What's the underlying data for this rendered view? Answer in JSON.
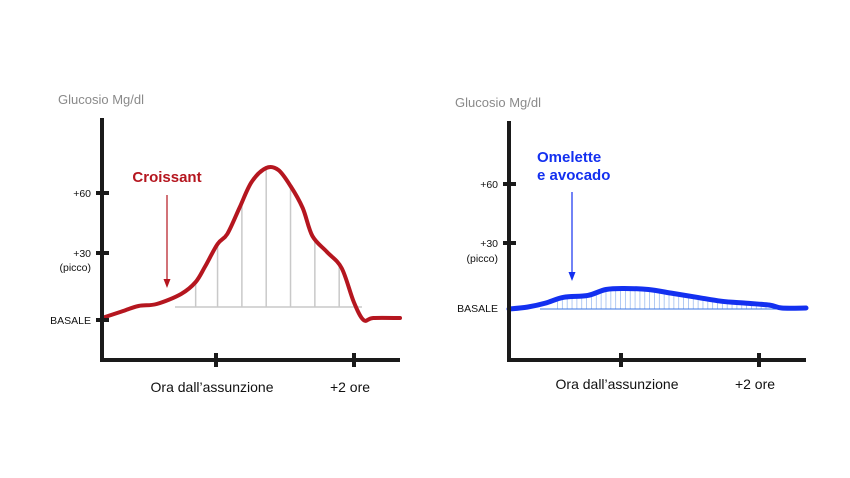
{
  "chart_data": [
    {
      "type": "line",
      "ylabel": "Glucosio Mg/dl",
      "xlabel": "Ora dall’assunzione",
      "x_tick_labels": [
        "",
        "+2 ore"
      ],
      "y_ticks": [
        {
          "value": 0,
          "label": "BASALE",
          "sublabel": ""
        },
        {
          "value": 30,
          "label": "+30",
          "sublabel": "(picco)"
        },
        {
          "value": 60,
          "label": "+60",
          "sublabel": ""
        }
      ],
      "ylim": [
        -18,
        90
      ],
      "xlim": [
        -0.35,
        2.1
      ],
      "x_ticks": [
        0.5,
        1.85
      ],
      "series": [
        {
          "name": "Croissant",
          "color": "#b5161f",
          "x": [
            -0.35,
            -0.2,
            -0.05,
            0.1,
            0.3,
            0.42,
            0.5,
            0.6,
            0.68,
            0.78,
            0.88,
            1.0,
            1.1,
            1.2,
            1.3,
            1.38,
            1.5,
            1.62,
            1.72,
            1.8,
            1.88,
            2.1
          ],
          "values": [
            0,
            3,
            6,
            7,
            12,
            18,
            26,
            37,
            42,
            55,
            68,
            75,
            74,
            66,
            55,
            41,
            33,
            25,
            8,
            -1,
            0,
            0
          ],
          "hatch_x": [
            0.42,
            0.6,
            0.8,
            1.0,
            1.2,
            1.4,
            1.6
          ]
        }
      ]
    },
    {
      "type": "line",
      "ylabel": "Glucosio Mg/dl",
      "xlabel": "Ora dall’assunzione",
      "x_tick_labels": [
        "",
        "+2 ore"
      ],
      "y_ticks": [
        {
          "value": 0,
          "label": "BASALE",
          "sublabel": ""
        },
        {
          "value": 30,
          "label": "+30",
          "sublabel": "(picco)"
        },
        {
          "value": 60,
          "label": "+60",
          "sublabel": ""
        }
      ],
      "ylim": [
        -18,
        90
      ],
      "xlim": [
        -0.35,
        2.1
      ],
      "x_ticks": [
        0.5,
        1.85
      ],
      "series": [
        {
          "name": "Omelette e avocado",
          "color": "#1330f0",
          "x": [
            -0.35,
            -0.2,
            -0.05,
            0.1,
            0.3,
            0.45,
            0.6,
            0.8,
            1.0,
            1.2,
            1.4,
            1.6,
            1.8,
            1.9,
            2.1
          ],
          "values": [
            0,
            1,
            3,
            6,
            7,
            10,
            10.5,
            10,
            8,
            6,
            4,
            3,
            2,
            0.5,
            0.5
          ]
        }
      ]
    }
  ],
  "annotations": [
    {
      "lines": [
        "Croissant"
      ],
      "color": "#b5161f"
    },
    {
      "lines": [
        "Omelette",
        "e avocado"
      ],
      "color": "#1330f0"
    }
  ]
}
